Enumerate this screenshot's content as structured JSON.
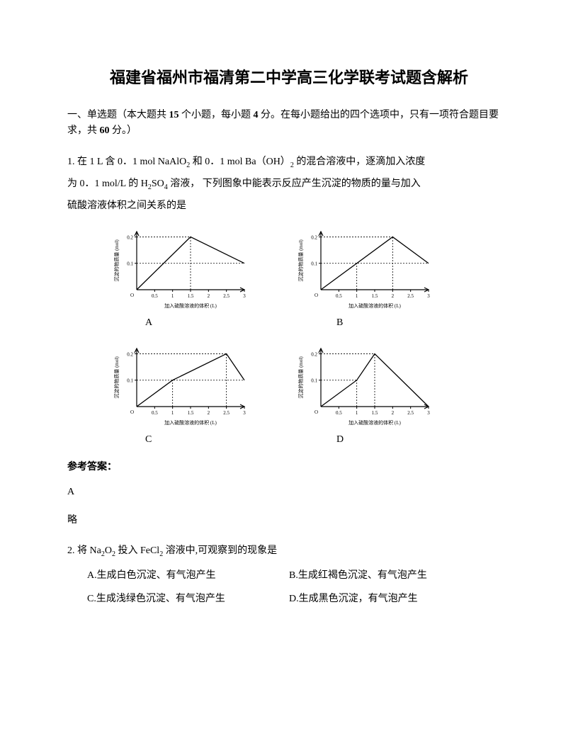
{
  "title": "福建省福州市福清第二中学高三化学联考试题含解析",
  "section": {
    "prefix": "一、单选题（本大题共 ",
    "count": "15",
    "mid1": " 个小题，每小题 ",
    "per": "4",
    "mid2": " 分。在每小题给出的四个选项中，只有一项符合题目要求，共 ",
    "total": "60",
    "suffix": " 分。）"
  },
  "q1": {
    "line1a": "1. 在 1 L 含 0．1 mol NaAlO",
    "line1b": " 和 0．1 mol Ba（OH）",
    "line1c": " 的混合溶液中，逐滴加入浓度",
    "line2a": "为 0．1 mol/L 的 H",
    "line2b": "SO",
    "line2c": " 溶液， 下列图象中能表示反应产生沉淀的物质的量与加入",
    "line3": "硫酸溶液体积之间关系的是",
    "labelA": "A",
    "labelB": "B",
    "labelC": "C",
    "labelD": "D"
  },
  "chartCommon": {
    "ylabel": "沉淀的物质量 (mol)",
    "xlabel_a": "加入硫酸溶液的体积 (L)",
    "xlabel_b": "加入硫酸溶液的体积 (L)",
    "xticks": [
      "0.5",
      "1",
      "1.5",
      "2",
      "2.5",
      "3"
    ],
    "yticks": [
      "0.1",
      "0.2"
    ],
    "stroke": "#000000",
    "bg": "#ffffff"
  },
  "chartA": {
    "poly": [
      [
        0,
        0
      ],
      [
        1.5,
        0.2
      ],
      [
        3,
        0.1
      ]
    ],
    "dashX": [
      1.5
    ],
    "dashY": [
      0.1,
      0.2
    ]
  },
  "chartB": {
    "poly": [
      [
        0,
        0
      ],
      [
        1,
        0.1
      ],
      [
        2,
        0.2
      ],
      [
        3,
        0.1
      ]
    ],
    "dashX": [
      1,
      2
    ],
    "dashY": [
      0.1,
      0.2
    ]
  },
  "chartC": {
    "poly": [
      [
        0,
        0
      ],
      [
        1,
        0.1
      ],
      [
        2.5,
        0.2
      ],
      [
        3,
        0.1
      ]
    ],
    "dashX": [
      1,
      2.5
    ],
    "dashY": [
      0.1,
      0.2
    ]
  },
  "chartD": {
    "poly": [
      [
        0,
        0
      ],
      [
        1,
        0.1
      ],
      [
        1.5,
        0.2
      ],
      [
        3,
        0
      ]
    ],
    "dashX": [
      1,
      1.5
    ],
    "dashY": [
      0.1,
      0.2
    ]
  },
  "answer": {
    "label": "参考答案：",
    "value": "A",
    "brief": "略"
  },
  "q2": {
    "stem_a": "2. 将 Na",
    "stem_b": "O",
    "stem_c": " 投入 FeCl",
    "stem_d": " 溶液中,可观察到的现象是",
    "optA": "A.生成白色沉淀、有气泡产生",
    "optB": "B.生成红褐色沉淀、有气泡产生",
    "optC": "C.生成浅绿色沉淀、有气泡产生",
    "optD": "D.生成黑色沉淀，有气泡产生"
  }
}
